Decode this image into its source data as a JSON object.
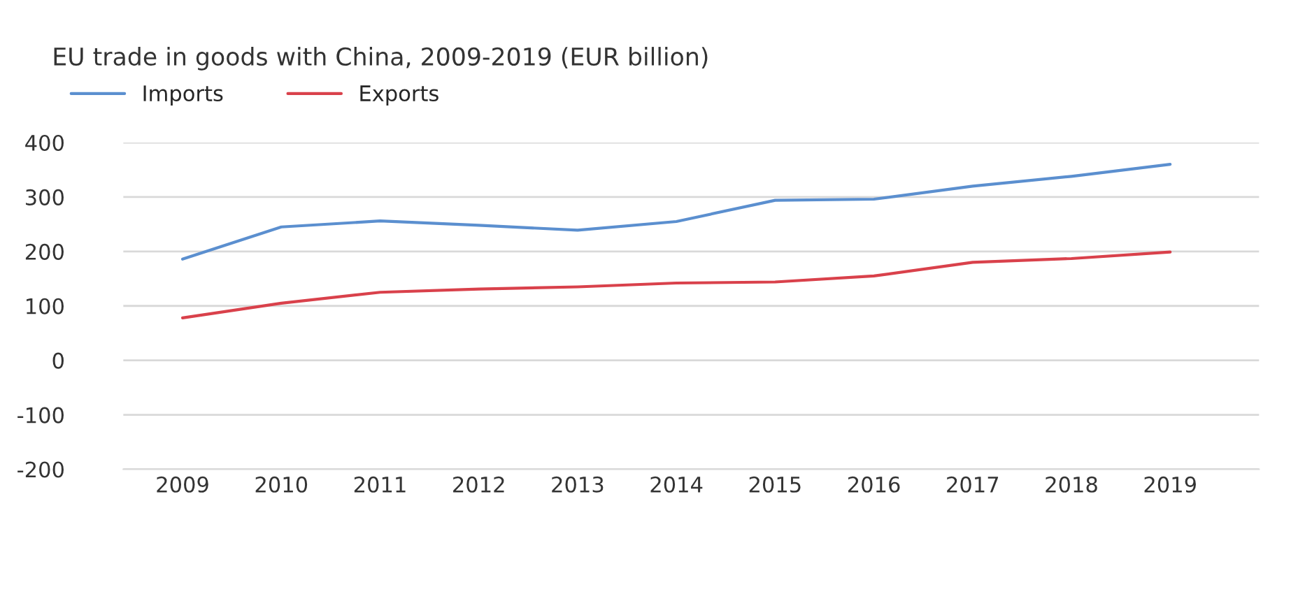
{
  "chart_data": {
    "type": "line",
    "title": "EU trade in goods with China, 2009-2019 (EUR billion)",
    "categories": [
      "2009",
      "2010",
      "2011",
      "2012",
      "2013",
      "2014",
      "2015",
      "2016",
      "2017",
      "2018",
      "2019"
    ],
    "series": [
      {
        "name": "Imports",
        "color": "#5b8fcf",
        "values": [
          186,
          245,
          256,
          248,
          239,
          255,
          294,
          296,
          320,
          338,
          360
        ]
      },
      {
        "name": "Exports",
        "color": "#d9414b",
        "values": [
          78,
          105,
          125,
          131,
          135,
          142,
          144,
          155,
          180,
          187,
          199
        ]
      }
    ],
    "ylim": [
      -200,
      400
    ],
    "yticks": [
      -200,
      -100,
      0,
      100,
      200,
      300,
      400
    ],
    "grid": "y",
    "legend": "top left",
    "marker": "none",
    "line_style": "solid"
  }
}
